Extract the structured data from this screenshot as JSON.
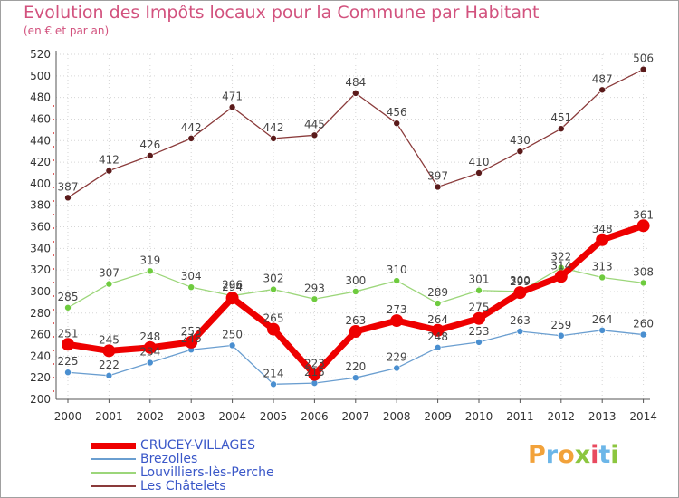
{
  "title": "Evolution des Impôts locaux pour la Commune par Habitant",
  "subtitle": "(en € et par an)",
  "logo": {
    "text": "Proxiti",
    "letters": [
      {
        "ch": "P",
        "color": "#f2a23a"
      },
      {
        "ch": "r",
        "color": "#6cb6e8"
      },
      {
        "ch": "o",
        "color": "#f2a23a"
      },
      {
        "ch": "x",
        "color": "#8cc63f"
      },
      {
        "ch": "i",
        "color": "#e84a5f"
      },
      {
        "ch": "t",
        "color": "#6cb6e8"
      },
      {
        "ch": "i",
        "color": "#8cc63f"
      }
    ]
  },
  "chart_data": {
    "type": "line",
    "x": [
      "2000",
      "2001",
      "2002",
      "2003",
      "2004",
      "2005",
      "2006",
      "2007",
      "2008",
      "2009",
      "2010",
      "2011",
      "2012",
      "2013",
      "2014"
    ],
    "ylim": [
      200,
      520
    ],
    "yticks": [
      "200",
      "220",
      "240",
      "260",
      "280",
      "300",
      "320",
      "340",
      "360",
      "380",
      "400",
      "420",
      "440",
      "460",
      "480",
      "500",
      "520"
    ],
    "grid": true,
    "legend_position": "bottom-left",
    "series": [
      {
        "name": "CRUCEY-VILLAGES",
        "color": "#ee0000",
        "marker": "#ee0000",
        "values": [
          251,
          245,
          248,
          253,
          294,
          265,
          223,
          263,
          273,
          264,
          275,
          299,
          314,
          348,
          361
        ]
      },
      {
        "name": "Brezolles",
        "color": "#6a9ed0",
        "marker": "#4a8fd0",
        "values": [
          225,
          222,
          234,
          246,
          250,
          214,
          215,
          220,
          229,
          248,
          253,
          263,
          259,
          264,
          260
        ]
      },
      {
        "name": "Louvilliers-lès-Perche",
        "color": "#9cd67a",
        "marker": "#6ecb3e",
        "values": [
          285,
          307,
          319,
          304,
          296,
          302,
          293,
          300,
          310,
          289,
          301,
          300,
          322,
          313,
          308
        ]
      },
      {
        "name": "Les Châtelets",
        "color": "#8a3a3a",
        "marker": "#5a1a1a",
        "values": [
          387,
          412,
          426,
          442,
          471,
          442,
          445,
          484,
          456,
          397,
          410,
          430,
          451,
          487,
          506
        ]
      }
    ]
  }
}
